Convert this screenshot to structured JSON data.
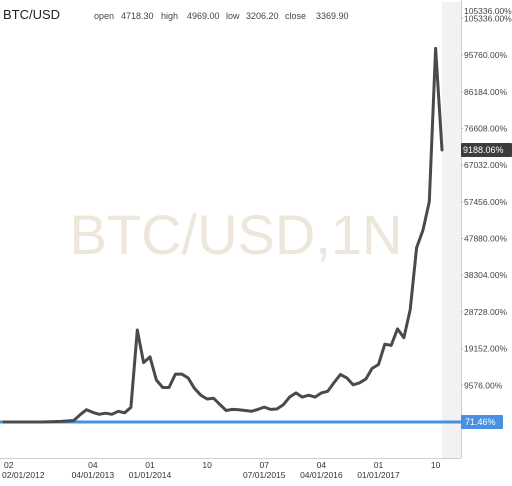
{
  "symbol": "BTC/USD",
  "ohlc": {
    "open_label": "open",
    "open": "4718.30",
    "high_label": "high",
    "high": "4969.00",
    "low_label": "low",
    "low": "3206.20",
    "close_label": "close",
    "close": "3369.90"
  },
  "watermark": "BTC/USD,1N",
  "last_value_tag": "9188.06%",
  "percent_tag": "71.46%",
  "colors": {
    "line": "#4a4a4a",
    "baseline": "#4a90e2",
    "last_tag": "#3d3d3d",
    "percent_tag": "#4a90e2",
    "future_band": "#f2f2f2"
  },
  "chart_data": {
    "type": "line",
    "title": "BTC/USD",
    "y_tick_labels": [
      "9576.00%",
      "19152.00%",
      "28728.00%",
      "38304.00%",
      "47880.00%",
      "57456.00%",
      "67032.00%",
      "76608.00%",
      "86184.00%",
      "95760.00%",
      "105336.00%"
    ],
    "y_ticks": [
      9576,
      19152,
      28728,
      38304,
      47880,
      57456,
      67032,
      76608,
      86184,
      95760,
      105336
    ],
    "ylim": [
      0,
      107000
    ],
    "x_tick_labels": [
      {
        "major": "02",
        "minor": "02/01/2012",
        "t": 0
      },
      {
        "major": "04",
        "minor": "04/01/2013",
        "t": 14
      },
      {
        "major": "01",
        "minor": "01/01/2014",
        "t": 23
      },
      {
        "major": "10",
        "minor": "",
        "t": 32
      },
      {
        "major": "07",
        "minor": "07/01/2015",
        "t": 41
      },
      {
        "major": "04",
        "minor": "04/01/2016",
        "t": 50
      },
      {
        "major": "01",
        "minor": "01/01/2017",
        "t": 59
      },
      {
        "major": "10",
        "minor": "",
        "t": 68
      }
    ],
    "x_range": [
      0,
      72
    ],
    "series": [
      {
        "values": [
          [
            0,
            0
          ],
          [
            3,
            0
          ],
          [
            6,
            0
          ],
          [
            9,
            150
          ],
          [
            11,
            400
          ],
          [
            12,
            1900
          ],
          [
            13,
            3200
          ],
          [
            14,
            2500
          ],
          [
            15,
            2000
          ],
          [
            16,
            2300
          ],
          [
            17,
            2000
          ],
          [
            18,
            2800
          ],
          [
            19,
            2400
          ],
          [
            20,
            3800
          ],
          [
            21,
            24000
          ],
          [
            22,
            15500
          ],
          [
            23,
            17000
          ],
          [
            24,
            11000
          ],
          [
            25,
            9000
          ],
          [
            26,
            9000
          ],
          [
            27,
            12500
          ],
          [
            28,
            12500
          ],
          [
            29,
            11500
          ],
          [
            30,
            8800
          ],
          [
            31,
            7000
          ],
          [
            32,
            6000
          ],
          [
            33,
            6200
          ],
          [
            34,
            4600
          ],
          [
            35,
            3000
          ],
          [
            36,
            3300
          ],
          [
            37,
            3200
          ],
          [
            38,
            3000
          ],
          [
            39,
            2800
          ],
          [
            40,
            3300
          ],
          [
            41,
            3900
          ],
          [
            42,
            3300
          ],
          [
            43,
            3400
          ],
          [
            44,
            4500
          ],
          [
            45,
            6500
          ],
          [
            46,
            7600
          ],
          [
            47,
            6500
          ],
          [
            48,
            7000
          ],
          [
            49,
            6500
          ],
          [
            50,
            7600
          ],
          [
            51,
            8000
          ],
          [
            52,
            10300
          ],
          [
            53,
            12400
          ],
          [
            54,
            11500
          ],
          [
            55,
            9700
          ],
          [
            56,
            10200
          ],
          [
            57,
            11200
          ],
          [
            58,
            14000
          ],
          [
            59,
            15000
          ],
          [
            60,
            20300
          ],
          [
            61,
            20000
          ],
          [
            62,
            24300
          ],
          [
            63,
            22000
          ],
          [
            64,
            29300
          ],
          [
            65,
            45500
          ],
          [
            66,
            50000
          ],
          [
            67,
            57500
          ],
          [
            68,
            97500
          ],
          [
            69,
            71000
          ]
        ]
      }
    ],
    "baseline_value": 0,
    "future_band_from_t": 69,
    "grid": false
  }
}
